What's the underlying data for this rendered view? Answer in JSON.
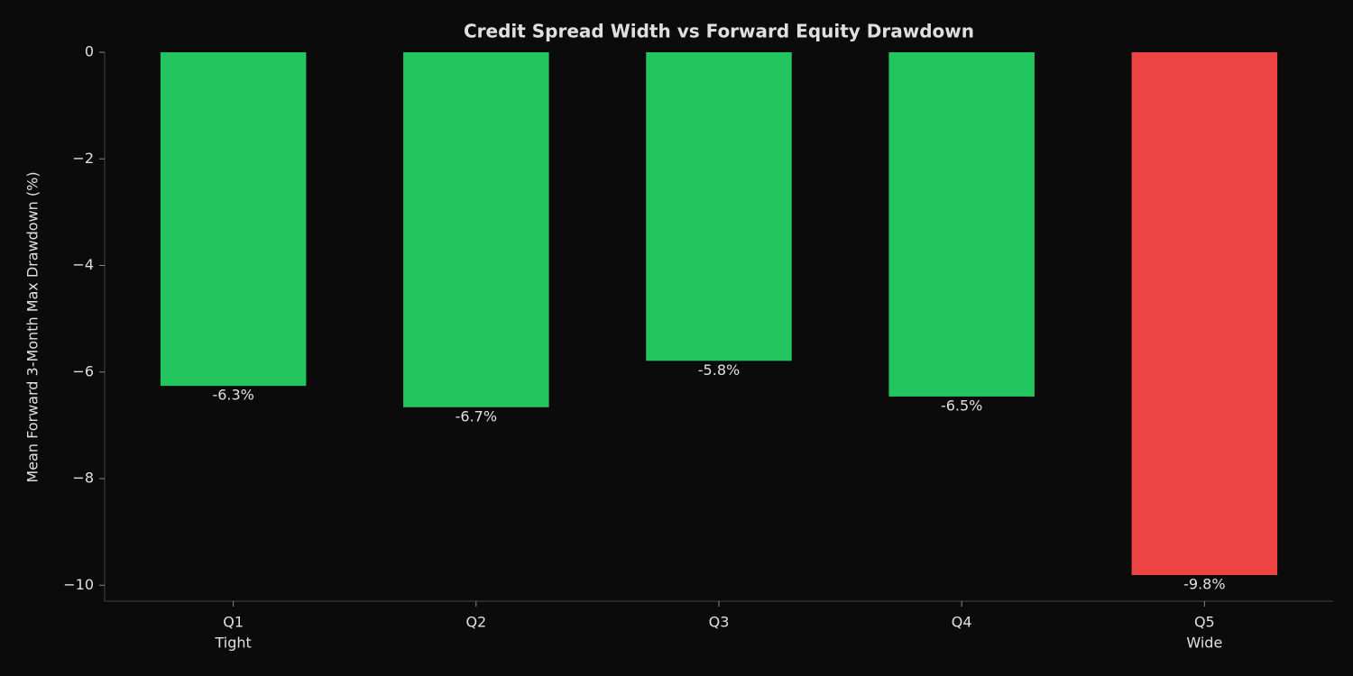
{
  "chart_data": {
    "type": "bar",
    "title": "Credit Spread Width vs Forward Equity Drawdown",
    "y_label": "Mean Forward 3-Month Max Drawdown (%)",
    "categories": [
      "Q1",
      "Q2",
      "Q3",
      "Q4",
      "Q5"
    ],
    "category_sublabels": [
      "Tight",
      null,
      null,
      null,
      "Wide"
    ],
    "values": [
      -6.26,
      -6.66,
      -5.79,
      -6.46,
      -9.81
    ],
    "value_labels": [
      "-6.3%",
      "-6.7%",
      "-5.8%",
      "-6.5%",
      "-9.8%"
    ],
    "colors": [
      "#22c55e",
      "#22c55e",
      "#22c55e",
      "#22c55e",
      "#ef4444"
    ],
    "ylim": [
      -10.3,
      0
    ],
    "yticks": [
      0,
      {
        "value": -2,
        "label": "−2"
      },
      {
        "value": -4,
        "label": "−4"
      },
      {
        "value": -6,
        "label": "−6"
      },
      {
        "value": -8,
        "label": "−8"
      },
      {
        "value": -10,
        "label": "−10"
      }
    ],
    "grid": false
  }
}
